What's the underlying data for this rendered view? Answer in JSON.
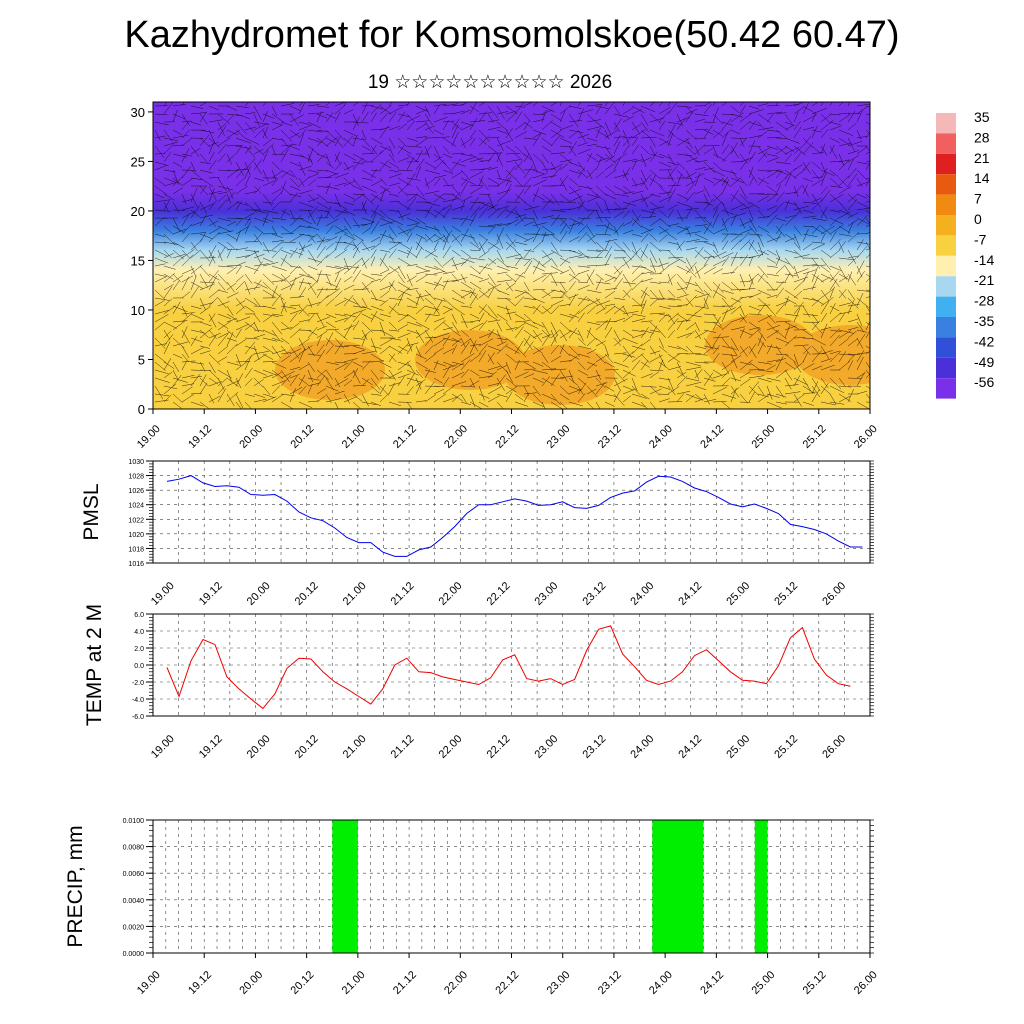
{
  "page": {
    "title": "Kazhydromet for Komsomolskoe(50.42 60.47)",
    "subtitle": "19 ☆☆☆☆☆☆☆☆☆☆ 2026"
  },
  "chart_data": [
    {
      "type": "heatmap",
      "name": "temperature-cross-section",
      "description_free": true,
      "x_tick_labels": [
        "19.00",
        "19.12",
        "20.00",
        "20.12",
        "21.00",
        "21.12",
        "22.00",
        "22.12",
        "23.00",
        "23.12",
        "24.00",
        "24.12",
        "25.00",
        "25.12",
        "26.00"
      ],
      "y_ticks": [
        0,
        5,
        10,
        15,
        20,
        25,
        30
      ],
      "ylim": [
        0,
        31
      ],
      "colorbar_labels": [
        "35",
        "28",
        "21",
        "14",
        "7",
        "0",
        "-7",
        "-14",
        "-21",
        "-28",
        "-35",
        "-42",
        "-49",
        "-56"
      ],
      "colorbar_colors": [
        "#f4b8b8",
        "#f06060",
        "#e02020",
        "#e85a10",
        "#f08a10",
        "#f5b020",
        "#f8d040",
        "#fff0b0",
        "#a8d8f0",
        "#40b0f0",
        "#3a80e0",
        "#3050d8",
        "#4a30d8",
        "#7a30e8"
      ],
      "profile": [
        {
          "height": 0,
          "temp": -4
        },
        {
          "height": 5,
          "temp": -6
        },
        {
          "height": 10,
          "temp": -9
        },
        {
          "height": 14,
          "temp": -14
        },
        {
          "height": 16,
          "temp": -22
        },
        {
          "height": 18,
          "temp": -35
        },
        {
          "height": 20,
          "temp": -48
        },
        {
          "height": 22,
          "temp": -55
        },
        {
          "height": 26,
          "temp": -56
        },
        {
          "height": 31,
          "temp": -56
        }
      ]
    },
    {
      "type": "line",
      "name": "pmsl",
      "ylabel": "PMSL",
      "y_ticks": [
        1016,
        1018,
        1020,
        1022,
        1024,
        1026,
        1028,
        1030
      ],
      "ylim": [
        1016,
        1030
      ],
      "x_tick_labels": [
        "19.00",
        "19.12",
        "20.00",
        "20.12",
        "21.00",
        "21.12",
        "22.00",
        "22.12",
        "23.00",
        "23.12",
        "24.00",
        "24.12",
        "25.00",
        "25.12",
        "26.00"
      ],
      "x_step_hours": 3,
      "color": "#0000ee",
      "values": [
        1027.2,
        1027.5,
        1028.0,
        1027.0,
        1026.5,
        1026.6,
        1026.4,
        1025.4,
        1025.3,
        1025.4,
        1024.5,
        1023.0,
        1022.2,
        1021.8,
        1020.8,
        1019.5,
        1018.8,
        1018.8,
        1017.5,
        1016.9,
        1016.9,
        1017.8,
        1018.2,
        1019.5,
        1021.0,
        1022.8,
        1024.0,
        1024.0,
        1024.4,
        1024.8,
        1024.5,
        1023.9,
        1024.0,
        1024.4,
        1023.6,
        1023.5,
        1023.9,
        1025.0,
        1025.6,
        1025.9,
        1027.1,
        1027.9,
        1027.8,
        1027.2,
        1026.3,
        1025.8,
        1025.0,
        1024.1,
        1023.7,
        1024.1,
        1023.5,
        1022.8,
        1021.3,
        1021.0,
        1020.6,
        1020.0,
        1019.0,
        1018.2,
        1018.2
      ]
    },
    {
      "type": "line",
      "name": "temp-2m",
      "ylabel": "TEMP at 2 M",
      "y_ticks": [
        -6.0,
        -4.0,
        -2.0,
        0.0,
        2.0,
        4.0,
        6.0
      ],
      "y_tick_labels": [
        "-6.0",
        "-4.0",
        "-2.0",
        "0.0",
        "2.0",
        "4.0",
        "6.0"
      ],
      "ylim": [
        -6,
        6
      ],
      "x_tick_labels": [
        "19.00",
        "19.12",
        "20.00",
        "20.12",
        "21.00",
        "21.12",
        "22.00",
        "22.12",
        "23.00",
        "23.12",
        "24.00",
        "24.12",
        "25.00",
        "25.12",
        "26.00"
      ],
      "x_step_hours": 3,
      "color": "#ee0000",
      "values": [
        -0.3,
        -3.7,
        0.5,
        3.0,
        2.4,
        -1.4,
        -2.8,
        -4.0,
        -5.1,
        -3.4,
        -0.4,
        0.8,
        0.7,
        -0.8,
        -2.0,
        -2.8,
        -3.7,
        -4.6,
        -2.8,
        0.0,
        0.8,
        -0.8,
        -0.9,
        -1.4,
        -1.7,
        -2.0,
        -2.3,
        -1.5,
        0.6,
        1.2,
        -1.6,
        -1.9,
        -1.6,
        -2.3,
        -1.7,
        1.7,
        4.2,
        4.6,
        1.3,
        -0.2,
        -1.8,
        -2.3,
        -1.9,
        -0.8,
        1.1,
        1.8,
        0.5,
        -0.8,
        -1.8,
        -1.9,
        -2.2,
        -0.1,
        3.2,
        4.4,
        0.7,
        -1.2,
        -2.2,
        -2.5
      ]
    },
    {
      "type": "bar",
      "name": "precip",
      "ylabel": "PRECIP, mm",
      "y_ticks": [
        0,
        0.002,
        0.004,
        0.006,
        0.008,
        0.01
      ],
      "y_tick_labels": [
        "0.0000",
        "0.0020",
        "0.0040",
        "0.0060",
        "0.0080",
        "0.0100"
      ],
      "ylim": [
        0,
        0.01
      ],
      "x_tick_labels": [
        "19.00",
        "19.12",
        "20.00",
        "20.12",
        "21.00",
        "21.12",
        "22.00",
        "22.12",
        "23.00",
        "23.12",
        "24.00",
        "24.12",
        "25.00",
        "25.12",
        "26.00"
      ],
      "color": "#00ee00",
      "bars": [
        {
          "start_hour": 42,
          "end_hour": 48,
          "value": 0.01
        },
        {
          "start_hour": 117,
          "end_hour": 129,
          "value": 0.01
        },
        {
          "start_hour": 141,
          "end_hour": 144,
          "value": 0.01
        }
      ]
    }
  ]
}
